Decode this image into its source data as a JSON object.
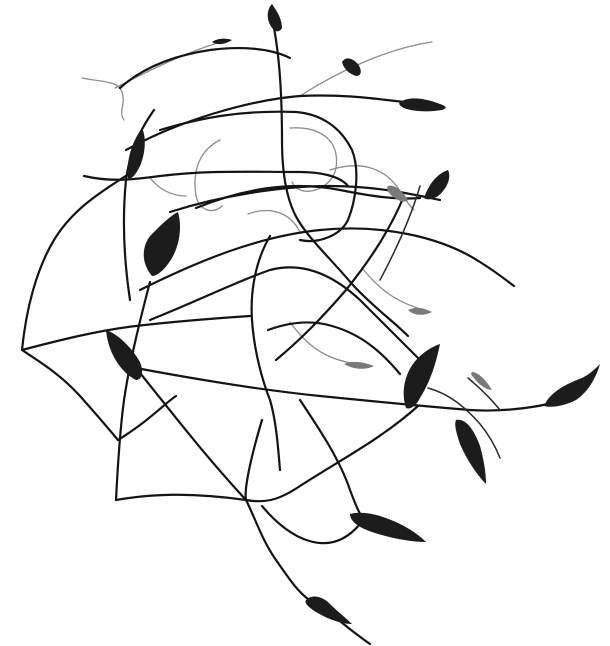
{
  "image": {
    "background_color": "#ffffff",
    "ink_color": "#141414",
    "faded_ink_color": "#8c8c8c"
  }
}
